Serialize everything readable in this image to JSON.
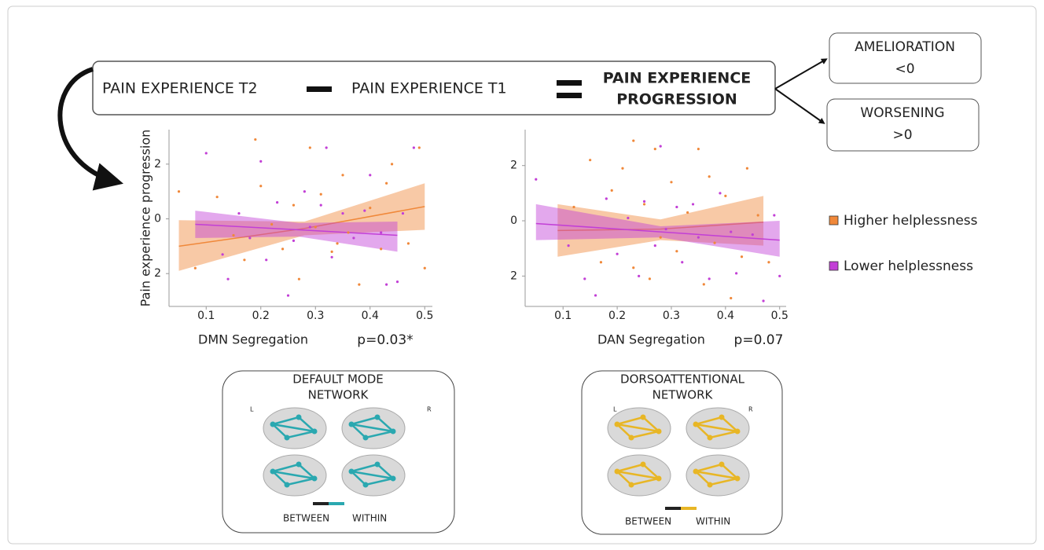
{
  "equation": {
    "term_a": "PAIN EXPERIENCE T2",
    "term_b": "PAIN EXPERIENCE T1",
    "result": [
      "PAIN EXPERIENCE",
      "PROGRESSION"
    ]
  },
  "outcomes": [
    {
      "label": "AMELIORATION",
      "rule": "<0"
    },
    {
      "label": "WORSENING",
      "rule": ">0"
    }
  ],
  "chart_data": [
    {
      "type": "scatter",
      "x_label": "DMN Segregation",
      "y_label": "Pain experience progression",
      "annotation": "p=0.03*",
      "xlim": [
        0.032,
        0.514
      ],
      "ylim": [
        -3.2,
        3.26
      ],
      "xticks": [
        0.1,
        0.2,
        0.3,
        0.4,
        0.5
      ],
      "yticks": [
        {
          "value": -2,
          "label": "2"
        },
        0,
        2
      ],
      "series": [
        {
          "name": "Higher helplessness",
          "color": "#f0883a",
          "x": [
            0.05,
            0.08,
            0.12,
            0.15,
            0.17,
            0.19,
            0.2,
            0.22,
            0.24,
            0.26,
            0.27,
            0.29,
            0.3,
            0.31,
            0.33,
            0.35,
            0.36,
            0.38,
            0.4,
            0.42,
            0.44,
            0.47,
            0.49,
            0.5,
            0.43,
            0.34
          ],
          "values": [
            1.0,
            -1.8,
            0.8,
            -0.6,
            -1.5,
            2.9,
            1.2,
            -0.2,
            -1.1,
            0.5,
            -2.2,
            2.6,
            -0.3,
            0.9,
            -1.2,
            1.6,
            -0.5,
            -2.4,
            0.4,
            -1.1,
            2.0,
            -0.9,
            2.6,
            -1.8,
            1.3,
            -0.9
          ]
        },
        {
          "name": "Lower helplessness",
          "color": "#c23fd6",
          "x": [
            0.1,
            0.13,
            0.14,
            0.16,
            0.18,
            0.2,
            0.21,
            0.23,
            0.25,
            0.26,
            0.28,
            0.29,
            0.31,
            0.32,
            0.33,
            0.35,
            0.37,
            0.39,
            0.4,
            0.42,
            0.43,
            0.46,
            0.48,
            0.45
          ],
          "values": [
            2.4,
            -1.3,
            -2.2,
            0.2,
            -0.7,
            2.1,
            -1.5,
            0.6,
            -2.8,
            -0.8,
            1.0,
            -0.3,
            0.5,
            2.6,
            -1.4,
            0.2,
            -0.7,
            0.3,
            1.6,
            -0.5,
            -2.4,
            0.2,
            2.6,
            -2.3
          ]
        }
      ],
      "fits": [
        {
          "color": "#f0883a",
          "x": [
            0.05,
            0.28,
            0.5
          ],
          "values": [
            -1.0,
            -0.35,
            0.45
          ],
          "lower": [
            -1.9,
            -0.6,
            -0.4
          ],
          "upper": [
            -0.05,
            -0.1,
            1.3
          ]
        },
        {
          "color": "#c23fd6",
          "x": [
            0.08,
            0.27,
            0.45
          ],
          "values": [
            -0.2,
            -0.4,
            -0.6
          ],
          "lower": [
            -0.7,
            -0.65,
            -1.2
          ],
          "upper": [
            0.3,
            -0.15,
            -0.1
          ]
        }
      ]
    },
    {
      "type": "scatter",
      "x_label": "DAN Segregation",
      "annotation": "p=0.07",
      "xlim": [
        0.03,
        0.512
      ],
      "ylim": [
        -3.1,
        3.3
      ],
      "xticks": [
        0.1,
        0.2,
        0.3,
        0.4,
        0.5
      ],
      "yticks": [
        {
          "value": -2,
          "label": "2"
        },
        0,
        2
      ],
      "series": [
        {
          "color": "#f0883a",
          "x": [
            0.12,
            0.15,
            0.17,
            0.19,
            0.21,
            0.23,
            0.23,
            0.25,
            0.27,
            0.28,
            0.3,
            0.31,
            0.33,
            0.35,
            0.36,
            0.37,
            0.38,
            0.4,
            0.41,
            0.43,
            0.44,
            0.46,
            0.48,
            0.26
          ],
          "values": [
            0.5,
            2.2,
            -1.5,
            1.1,
            1.9,
            2.9,
            -1.7,
            0.6,
            2.6,
            -0.6,
            1.4,
            -1.1,
            0.3,
            2.6,
            -2.3,
            1.6,
            -0.8,
            0.9,
            -2.8,
            -1.3,
            1.9,
            0.2,
            -1.5,
            -2.1
          ]
        },
        {
          "color": "#c23fd6",
          "x": [
            0.05,
            0.11,
            0.14,
            0.16,
            0.18,
            0.2,
            0.22,
            0.24,
            0.25,
            0.27,
            0.28,
            0.29,
            0.31,
            0.32,
            0.34,
            0.35,
            0.37,
            0.39,
            0.41,
            0.42,
            0.45,
            0.47,
            0.49,
            0.5
          ],
          "values": [
            1.5,
            -0.9,
            -2.1,
            -2.7,
            0.8,
            -1.2,
            0.1,
            -2.0,
            0.7,
            -0.9,
            2.7,
            -0.3,
            0.5,
            -1.5,
            0.6,
            -0.6,
            -2.1,
            1.0,
            -0.4,
            -1.9,
            -0.5,
            -2.9,
            0.2,
            -2.0
          ]
        }
      ],
      "fits": [
        {
          "color": "#f0883a",
          "x": [
            0.09,
            0.28,
            0.47
          ],
          "values": [
            -0.35,
            -0.3,
            -0.05
          ],
          "lower": [
            -1.3,
            -0.7,
            -0.9
          ],
          "upper": [
            0.6,
            0.05,
            0.9
          ]
        },
        {
          "color": "#c23fd6",
          "x": [
            0.05,
            0.28,
            0.5
          ],
          "values": [
            -0.1,
            -0.4,
            -0.7
          ],
          "lower": [
            -0.7,
            -0.6,
            -1.3
          ],
          "upper": [
            0.6,
            -0.2,
            0.0
          ]
        }
      ]
    }
  ],
  "networks": [
    {
      "title": [
        "DEFAULT MODE",
        "NETWORK"
      ],
      "left": "L",
      "right": "R",
      "between": "BETWEEN",
      "within": "WITHIN",
      "color": "#2aa8b0"
    },
    {
      "title": [
        "DORSOATTENTIONAL",
        "NETWORK"
      ],
      "left": "L",
      "right": "R",
      "between": "BETWEEN",
      "within": "WITHIN",
      "color": "#e8b625"
    }
  ]
}
